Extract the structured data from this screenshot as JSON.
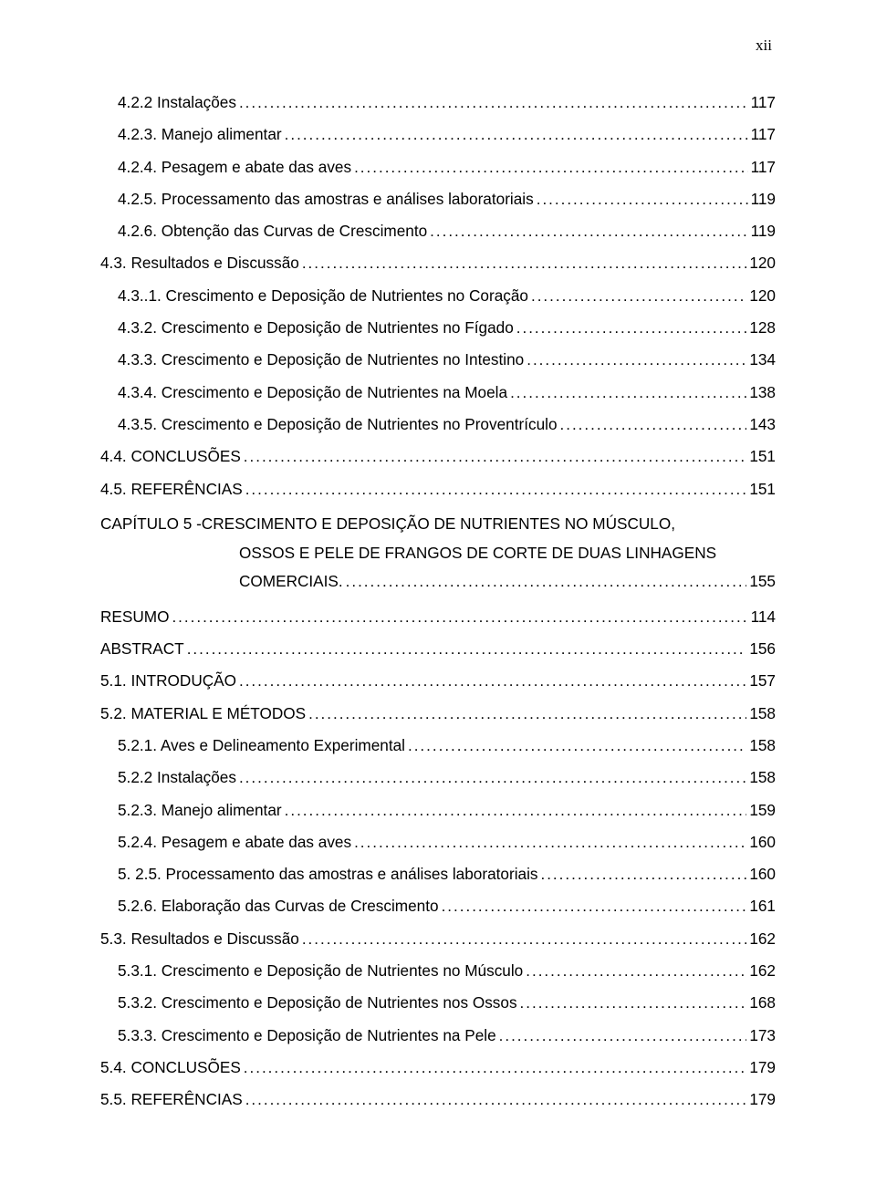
{
  "page_number_roman": "xii",
  "entries": [
    {
      "indent": 1,
      "label": "4.2.2 Instalações",
      "page": "117"
    },
    {
      "indent": 1,
      "label": "4.2.3. Manejo alimentar",
      "page": "117"
    },
    {
      "indent": 1,
      "label": "4.2.4. Pesagem e abate das aves",
      "page": "117"
    },
    {
      "indent": 1,
      "label": "4.2.5. Processamento das amostras e análises laboratoriais",
      "page": "119"
    },
    {
      "indent": 1,
      "label": "4.2.6. Obtenção das Curvas de Crescimento",
      "page": "119"
    },
    {
      "indent": 0,
      "label": "4.3. Resultados e Discussão",
      "page": "120"
    },
    {
      "indent": 1,
      "label": "4.3..1. Crescimento e Deposição de Nutrientes no Coração",
      "page": "120"
    },
    {
      "indent": 1,
      "label": "4.3.2. Crescimento e Deposição de Nutrientes no Fígado",
      "page": "128"
    },
    {
      "indent": 1,
      "label": "4.3.3. Crescimento e Deposição de Nutrientes no Intestino",
      "page": "134"
    },
    {
      "indent": 1,
      "label": "4.3.4. Crescimento e Deposição de Nutrientes na Moela",
      "page": "138"
    },
    {
      "indent": 1,
      "label": "4.3.5. Crescimento e Deposição de Nutrientes no Proventrículo",
      "page": "143"
    },
    {
      "indent": 0,
      "label": "4.4. CONCLUSÕES",
      "page": "151"
    },
    {
      "indent": 0,
      "label": "4.5. REFERÊNCIAS",
      "page": "151"
    }
  ],
  "chapter": {
    "line1": "CAPÍTULO 5 -CRESCIMENTO E DEPOSIÇÃO DE NUTRIENTES NO MÚSCULO,",
    "line2": "OSSOS E PELE DE FRANGOS DE CORTE DE DUAS LINHAGENS",
    "line3_label": "COMERCIAIS.",
    "line3_page": "155"
  },
  "entries2": [
    {
      "indent": 0,
      "label": "RESUMO",
      "page": "114"
    },
    {
      "indent": 0,
      "label": "ABSTRACT",
      "page": "156"
    },
    {
      "indent": 0,
      "label": "5.1. INTRODUÇÃO",
      "page": "157"
    },
    {
      "indent": 0,
      "label": "5.2. MATERIAL E MÉTODOS",
      "page": "158"
    },
    {
      "indent": 1,
      "label": "5.2.1. Aves e Delineamento Experimental",
      "page": "158"
    },
    {
      "indent": 1,
      "label": "5.2.2 Instalações",
      "page": "158"
    },
    {
      "indent": 1,
      "label": "5.2.3. Manejo alimentar",
      "page": "159"
    },
    {
      "indent": 1,
      "label": "5.2.4. Pesagem e abate das aves",
      "page": "160"
    },
    {
      "indent": 1,
      "label": "5. 2.5. Processamento das amostras e análises laboratoriais",
      "page": "160"
    },
    {
      "indent": 1,
      "label": "5.2.6. Elaboração das Curvas de Crescimento",
      "page": "161"
    },
    {
      "indent": 0,
      "label": "5.3. Resultados e Discussão",
      "page": "162"
    },
    {
      "indent": 1,
      "label": "5.3.1. Crescimento e Deposição de Nutrientes no Músculo",
      "page": "162"
    },
    {
      "indent": 1,
      "label": "5.3.2. Crescimento e Deposição de Nutrientes nos Ossos",
      "page": "168"
    },
    {
      "indent": 1,
      "label": "5.3.3. Crescimento e Deposição de Nutrientes na Pele",
      "page": "173"
    },
    {
      "indent": 0,
      "label": "5.4. CONCLUSÕES",
      "page": "179"
    },
    {
      "indent": 0,
      "label": "5.5. REFERÊNCIAS",
      "page": "179"
    }
  ]
}
